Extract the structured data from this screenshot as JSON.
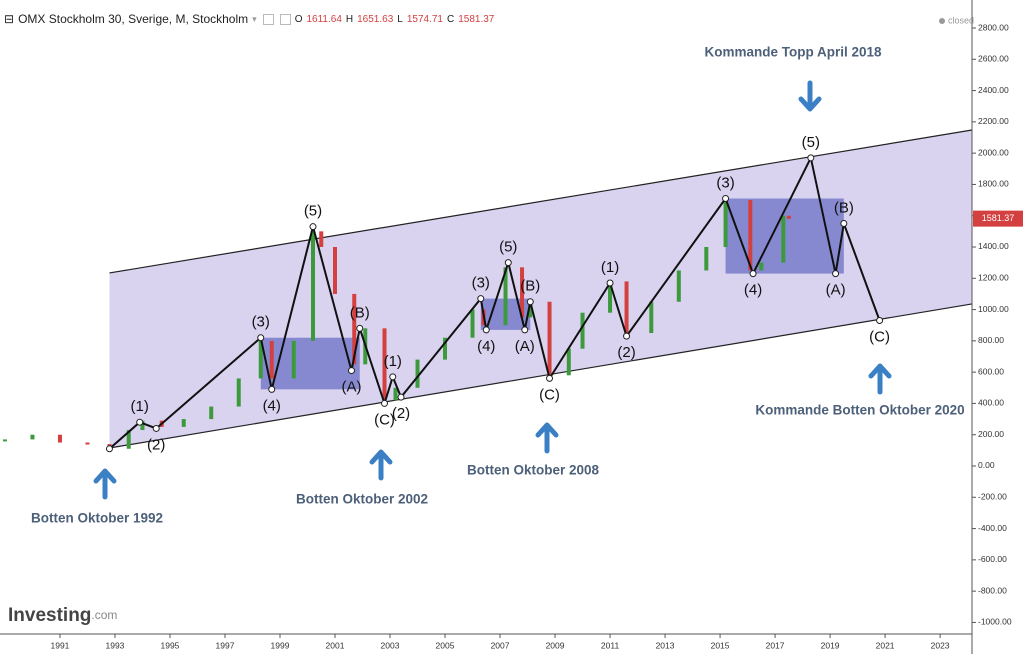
{
  "header": {
    "symbol": "OMX Stockholm 30, Sverige, M, Stockholm",
    "ohlc": [
      {
        "label": "O",
        "value": 1611.64
      },
      {
        "label": "H",
        "value": 1651.63
      },
      {
        "label": "L",
        "value": 1574.71
      },
      {
        "label": "C",
        "value": 1581.37
      }
    ],
    "status": "closed"
  },
  "logo": {
    "main": "Investing",
    "suffix": ".com"
  },
  "chart_data": {
    "type": "line",
    "xlim": [
      1988.82,
      2024.16
    ],
    "ylim": [
      -1074,
      2979
    ],
    "xticks": [
      1991,
      1993,
      1995,
      1997,
      1999,
      2001,
      2003,
      2005,
      2007,
      2009,
      2011,
      2013,
      2015,
      2017,
      2019,
      2021,
      2023
    ],
    "yticks": [
      {
        "value": 2800,
        "label": "2800.00"
      },
      {
        "value": 2600,
        "label": "2600.00"
      },
      {
        "value": 2400,
        "label": "2400.00"
      },
      {
        "value": 2200,
        "label": "2200.00"
      },
      {
        "value": 2000,
        "label": "2000.00"
      },
      {
        "value": 1800,
        "label": "1800.00"
      },
      {
        "value": 1600,
        "label": "1600.00"
      },
      {
        "value": 1400,
        "label": "1400.00"
      },
      {
        "value": 1200,
        "label": "1200.00"
      },
      {
        "value": 1000,
        "label": "1000.00"
      },
      {
        "value": 800,
        "label": "800.00"
      },
      {
        "value": 600,
        "label": "600.00"
      },
      {
        "value": 400,
        "label": "400.00"
      },
      {
        "value": 200,
        "label": "200.00"
      },
      {
        "value": 0,
        "label": "0.00"
      },
      {
        "value": -200,
        "label": "-200.00"
      },
      {
        "value": -400,
        "label": "-400.00"
      },
      {
        "value": -600,
        "label": "-600.00"
      },
      {
        "value": -800,
        "label": "-800.00"
      },
      {
        "value": -1000,
        "label": "-1000.00"
      }
    ],
    "price": {
      "up_color": "#3c9a3c",
      "down_color": "#d43f3f",
      "x": [
        1989,
        1990,
        1991,
        1992,
        1992.8,
        1993.5,
        1994,
        1994.7,
        1995.5,
        1996.5,
        1997.5,
        1998.3,
        1998.7,
        1999.5,
        2000.2,
        2000.5,
        2001,
        2001.7,
        2002.1,
        2002.8,
        2003.2,
        2004,
        2005,
        2006,
        2006.4,
        2007.2,
        2007.8,
        2008.1,
        2008.8,
        2009.5,
        2010,
        2011,
        2011.6,
        2012.5,
        2013.5,
        2014.5,
        2015.2,
        2016.1,
        2016.5,
        2017.3,
        2017.5
      ],
      "values": [
        170,
        200,
        150,
        140,
        110,
        230,
        290,
        250,
        300,
        380,
        560,
        800,
        560,
        800,
        1500,
        1400,
        1100,
        650,
        880,
        420,
        500,
        680,
        820,
        1000,
        900,
        1270,
        950,
        1050,
        580,
        750,
        980,
        1180,
        850,
        1050,
        1250,
        1400,
        1700,
        1250,
        1300,
        1600,
        1580
      ]
    },
    "waves": {
      "color": "#111111",
      "x": [
        1992.8,
        1993.9,
        1994.5,
        1998.3,
        1998.7,
        2000.2,
        2001.6,
        2001.9,
        2002.8,
        2003.1,
        2003.4,
        2006.3,
        2006.5,
        2007.3,
        2007.9,
        2008.1,
        2008.8,
        2011.0,
        2011.6,
        2015.2,
        2016.2,
        2018.3,
        2019.2,
        2019.5,
        2020.8
      ],
      "values": [
        110,
        280,
        240,
        820,
        490,
        1530,
        610,
        880,
        400,
        570,
        440,
        1070,
        870,
        1300,
        870,
        1050,
        560,
        1170,
        830,
        1710,
        1230,
        1970,
        1230,
        1550,
        930
      ],
      "labels": [
        null,
        "(1)",
        "(2)",
        "(3)",
        "(4)",
        "(5)",
        "(A)",
        "(B)",
        "(C)",
        "(1)",
        "(2)",
        "(3)",
        "(4)",
        "(5)",
        "(A)",
        "(B)",
        "(C)",
        "(1)",
        "(2)",
        "(3)",
        "(4)",
        "(5)",
        "(A)",
        "(B)",
        "(C)"
      ]
    },
    "channel": {
      "color": "#d9d3f0",
      "x": [
        1992.8,
        2024.16
      ],
      "upper": [
        1234,
        2148
      ],
      "lower": [
        115,
        1036
      ]
    },
    "box_color": "#6b70c6",
    "annotations": [
      "Kommande Topp April 2018",
      "Botten Oktober 1992",
      "Botten Oktober 2002",
      "Botten Oktober 2008",
      "Kommande Botten Oktober 2020"
    ],
    "annotation_color": "#4d6079",
    "arrow_color": "#3b7fc4"
  }
}
